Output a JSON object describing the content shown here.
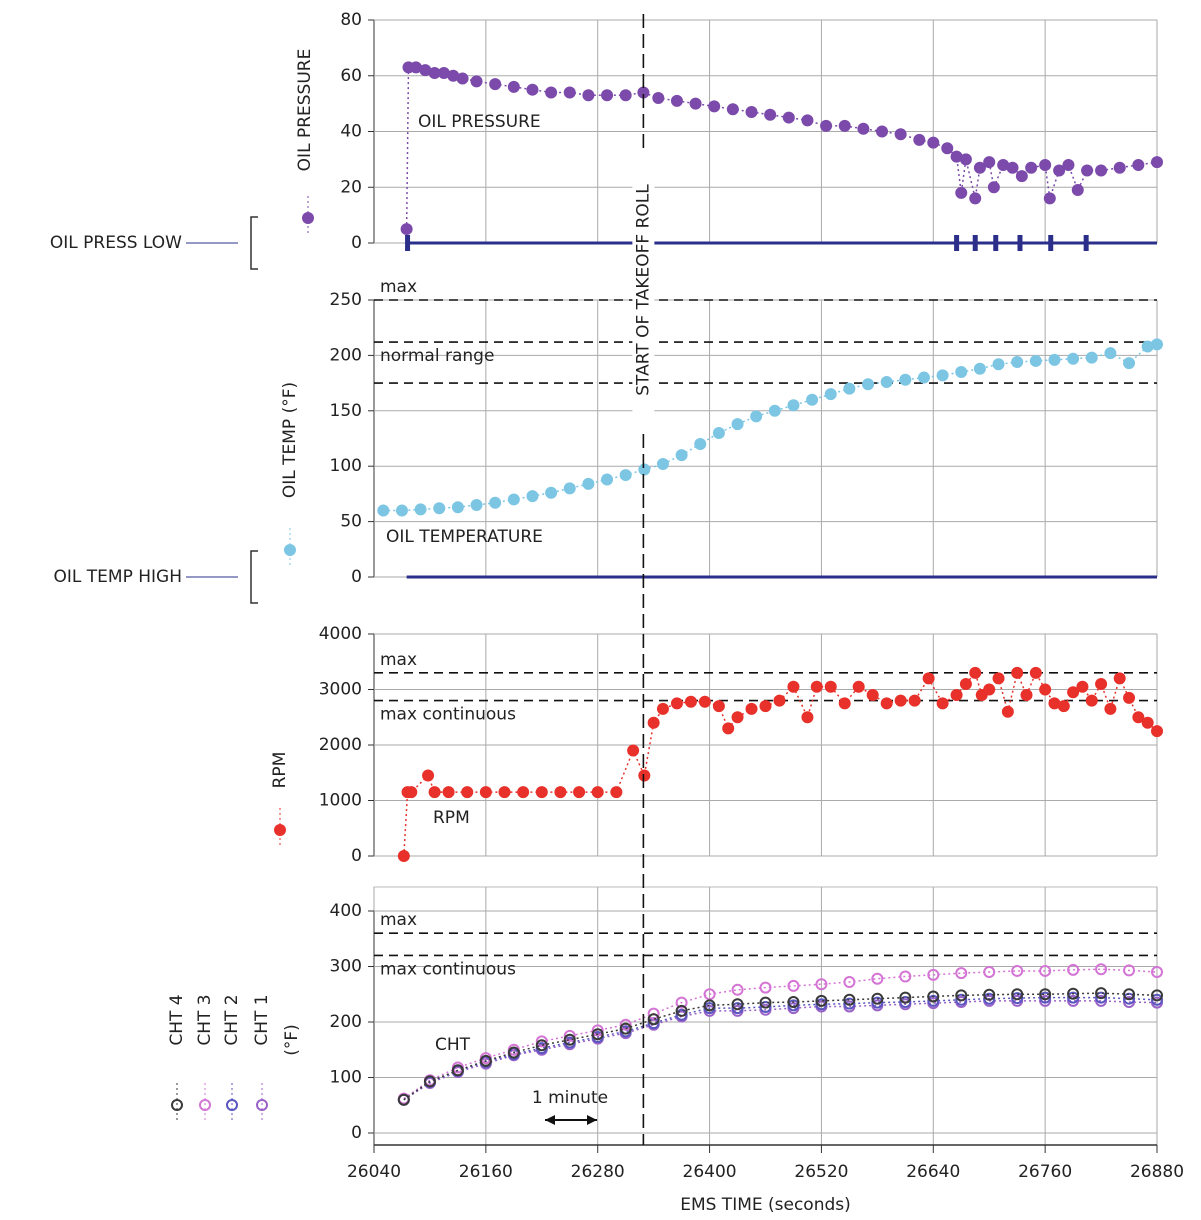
{
  "events": [
    {
      "x": 26329,
      "label": "START OF TAKEOFF ROLL"
    }
  ],
  "chart_data": [
    {
      "type": "scatter",
      "annotation": "OIL PRESSURE",
      "xlim": [
        26040,
        26880
      ],
      "ylim": [
        0,
        80
      ],
      "yticks": [
        0,
        20,
        40,
        60,
        80
      ],
      "grid": true,
      "alert": {
        "label": "OIL PRESS LOW",
        "start": 26075,
        "x": [
          26076,
          26665,
          26685,
          26707,
          26733,
          26766,
          26804
        ]
      },
      "series": [
        {
          "name": "OIL PRESSURE",
          "color": "#7b4aaa",
          "x": [
            26075,
            26077,
            26085,
            26095,
            26105,
            26115,
            26125,
            26135,
            26150,
            26170,
            26190,
            26210,
            26230,
            26250,
            26270,
            26290,
            26310,
            26329,
            26345,
            26365,
            26385,
            26405,
            26425,
            26445,
            26465,
            26485,
            26505,
            26525,
            26545,
            26565,
            26585,
            26605,
            26625,
            26640,
            26655,
            26665,
            26670,
            26675,
            26685,
            26690,
            26700,
            26705,
            26715,
            26725,
            26735,
            26745,
            26760,
            26765,
            26775,
            26785,
            26795,
            26805,
            26820,
            26840,
            26860,
            26880
          ],
          "values": [
            5,
            63,
            63,
            62,
            61,
            61,
            60,
            59,
            58,
            57,
            56,
            55,
            54,
            54,
            53,
            53,
            53,
            54,
            52,
            51,
            50,
            49,
            48,
            47,
            46,
            45,
            44,
            42,
            42,
            41,
            40,
            39,
            37,
            36,
            34,
            31,
            18,
            30,
            16,
            27,
            29,
            20,
            28,
            27,
            24,
            27,
            28,
            16,
            26,
            28,
            19,
            26,
            26,
            27,
            28,
            29
          ]
        }
      ]
    },
    {
      "type": "scatter",
      "annotation": "OIL TEMPERATURE",
      "xlim": [
        26040,
        26880
      ],
      "ylim": [
        0,
        250
      ],
      "yticks": [
        0,
        50,
        100,
        150,
        200,
        250
      ],
      "grid": true,
      "alert": {
        "label": "OIL TEMP HIGH",
        "start": 26075,
        "x": []
      },
      "ref_lines": [
        {
          "value": 250,
          "label": "max"
        },
        {
          "value": 212,
          "label": "normal range"
        },
        {
          "value": 175
        }
      ],
      "series": [
        {
          "name": "OIL TEMP (°F)",
          "color": "#7cc6e4",
          "x": [
            26050,
            26070,
            26090,
            26110,
            26130,
            26150,
            26170,
            26190,
            26210,
            26230,
            26250,
            26270,
            26290,
            26310,
            26330,
            26350,
            26370,
            26390,
            26410,
            26430,
            26450,
            26470,
            26490,
            26510,
            26530,
            26550,
            26570,
            26590,
            26610,
            26630,
            26650,
            26670,
            26690,
            26710,
            26730,
            26750,
            26770,
            26790,
            26810,
            26830,
            26850,
            26870,
            26880
          ],
          "values": [
            60,
            60,
            61,
            62,
            63,
            65,
            67,
            70,
            73,
            76,
            80,
            84,
            88,
            92,
            97,
            102,
            110,
            120,
            130,
            138,
            145,
            150,
            155,
            160,
            165,
            170,
            174,
            176,
            178,
            180,
            182,
            185,
            188,
            192,
            194,
            195,
            196,
            197,
            198,
            202,
            193,
            208,
            210
          ]
        }
      ]
    },
    {
      "type": "scatter",
      "annotation": "RPM",
      "xlim": [
        26040,
        26880
      ],
      "ylim": [
        0,
        4000
      ],
      "yticks": [
        0,
        1000,
        2000,
        3000,
        4000
      ],
      "grid": true,
      "ref_lines": [
        {
          "value": 3300,
          "label": "max"
        },
        {
          "value": 2800,
          "label": "max continuous"
        }
      ],
      "series": [
        {
          "name": "RPM",
          "color": "#e8312a",
          "x": [
            26072,
            26076,
            26080,
            26098,
            26105,
            26120,
            26140,
            26160,
            26180,
            26200,
            26220,
            26240,
            26260,
            26280,
            26300,
            26318,
            26330,
            26340,
            26350,
            26365,
            26380,
            26395,
            26410,
            26420,
            26430,
            26445,
            26460,
            26475,
            26490,
            26505,
            26515,
            26530,
            26545,
            26560,
            26575,
            26590,
            26605,
            26620,
            26635,
            26650,
            26665,
            26675,
            26685,
            26692,
            26700,
            26710,
            26720,
            26730,
            26740,
            26750,
            26760,
            26770,
            26780,
            26790,
            26800,
            26810,
            26820,
            26830,
            26840,
            26850,
            26860,
            26870,
            26880
          ],
          "values": [
            0,
            1150,
            1150,
            1450,
            1150,
            1150,
            1150,
            1150,
            1150,
            1150,
            1150,
            1150,
            1150,
            1150,
            1150,
            1900,
            1450,
            2400,
            2650,
            2750,
            2780,
            2780,
            2700,
            2300,
            2500,
            2650,
            2700,
            2800,
            3050,
            2500,
            3050,
            3050,
            2750,
            3050,
            2900,
            2750,
            2800,
            2800,
            3200,
            2750,
            2900,
            3100,
            3300,
            2900,
            3000,
            3200,
            2600,
            3300,
            2900,
            3300,
            3000,
            2750,
            2700,
            2950,
            3050,
            2800,
            3100,
            2650,
            3200,
            2850,
            2500,
            2400,
            2250
          ]
        }
      ]
    },
    {
      "type": "scatter",
      "annotation": "CHT",
      "ylabel": "(°F)",
      "xlabel": "EMS TIME (seconds)",
      "scale_note": "1 minute",
      "xlim": [
        26040,
        26880
      ],
      "xticks": [
        26040,
        26160,
        26280,
        26400,
        26520,
        26640,
        26760,
        26880
      ],
      "ylim": [
        0,
        400
      ],
      "yticks": [
        0,
        100,
        200,
        300,
        400
      ],
      "grid": true,
      "ref_lines": [
        {
          "value": 360,
          "label": "max"
        },
        {
          "value": 320,
          "label": "max continuous"
        }
      ],
      "x": [
        26072,
        26100,
        26130,
        26160,
        26190,
        26220,
        26250,
        26280,
        26310,
        26340,
        26370,
        26400,
        26430,
        26460,
        26490,
        26520,
        26550,
        26580,
        26610,
        26640,
        26670,
        26700,
        26730,
        26760,
        26790,
        26820,
        26850,
        26880
      ],
      "series": [
        {
          "name": "CHT 1",
          "color": "#9a62c8",
          "values": [
            60,
            90,
            110,
            125,
            140,
            150,
            160,
            170,
            180,
            195,
            210,
            220,
            220,
            222,
            225,
            228,
            228,
            230,
            232,
            234,
            236,
            238,
            238,
            238,
            238,
            238,
            236,
            235
          ]
        },
        {
          "name": "CHT 2",
          "color": "#5a56c0",
          "values": [
            60,
            92,
            112,
            128,
            142,
            153,
            163,
            173,
            183,
            198,
            213,
            225,
            225,
            227,
            230,
            232,
            233,
            235,
            236,
            238,
            240,
            242,
            243,
            244,
            244,
            244,
            242,
            240
          ]
        },
        {
          "name": "CHT 3",
          "color": "#d474d4",
          "values": [
            62,
            95,
            118,
            135,
            150,
            165,
            175,
            185,
            195,
            215,
            235,
            250,
            258,
            262,
            265,
            268,
            272,
            278,
            282,
            285,
            288,
            290,
            292,
            292,
            294,
            295,
            293,
            290
          ]
        },
        {
          "name": "CHT 4",
          "color": "#3a3a3a",
          "values": [
            60,
            93,
            113,
            130,
            145,
            158,
            168,
            178,
            188,
            205,
            220,
            230,
            232,
            235,
            236,
            238,
            240,
            242,
            244,
            246,
            248,
            249,
            250,
            250,
            251,
            252,
            250,
            248
          ]
        }
      ]
    }
  ]
}
